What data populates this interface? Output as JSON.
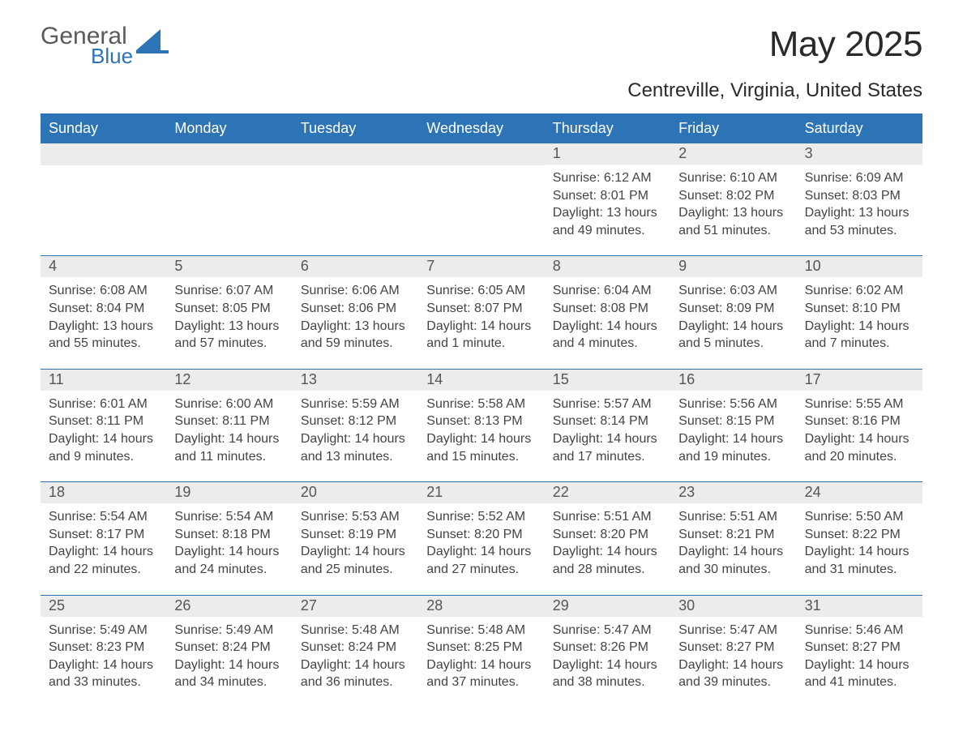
{
  "brand": {
    "general": "General",
    "blue": "Blue",
    "icon_color": "#2d74b7"
  },
  "header": {
    "month_title": "May 2025",
    "location": "Centreville, Virginia, United States"
  },
  "colors": {
    "header_bg": "#2d74b7",
    "header_text": "#ffffff",
    "daynum_bg": "#ececec",
    "daynum_text": "#555555",
    "body_text": "#444444",
    "rule": "#2d74b7",
    "page_bg": "#ffffff"
  },
  "typography": {
    "month_title_pt": 44,
    "location_pt": 24,
    "weekday_pt": 18,
    "daynum_pt": 18,
    "body_pt": 16,
    "font_family": "Arial"
  },
  "calendar": {
    "type": "table",
    "columns": 7,
    "weekdays": [
      "Sunday",
      "Monday",
      "Tuesday",
      "Wednesday",
      "Thursday",
      "Friday",
      "Saturday"
    ],
    "labels": {
      "sunrise": "Sunrise:",
      "sunset": "Sunset:",
      "daylight": "Daylight:"
    },
    "weeks": [
      [
        null,
        null,
        null,
        null,
        {
          "day": "1",
          "sunrise": "6:12 AM",
          "sunset": "8:01 PM",
          "daylight": "13 hours and 49 minutes."
        },
        {
          "day": "2",
          "sunrise": "6:10 AM",
          "sunset": "8:02 PM",
          "daylight": "13 hours and 51 minutes."
        },
        {
          "day": "3",
          "sunrise": "6:09 AM",
          "sunset": "8:03 PM",
          "daylight": "13 hours and 53 minutes."
        }
      ],
      [
        {
          "day": "4",
          "sunrise": "6:08 AM",
          "sunset": "8:04 PM",
          "daylight": "13 hours and 55 minutes."
        },
        {
          "day": "5",
          "sunrise": "6:07 AM",
          "sunset": "8:05 PM",
          "daylight": "13 hours and 57 minutes."
        },
        {
          "day": "6",
          "sunrise": "6:06 AM",
          "sunset": "8:06 PM",
          "daylight": "13 hours and 59 minutes."
        },
        {
          "day": "7",
          "sunrise": "6:05 AM",
          "sunset": "8:07 PM",
          "daylight": "14 hours and 1 minute."
        },
        {
          "day": "8",
          "sunrise": "6:04 AM",
          "sunset": "8:08 PM",
          "daylight": "14 hours and 4 minutes."
        },
        {
          "day": "9",
          "sunrise": "6:03 AM",
          "sunset": "8:09 PM",
          "daylight": "14 hours and 5 minutes."
        },
        {
          "day": "10",
          "sunrise": "6:02 AM",
          "sunset": "8:10 PM",
          "daylight": "14 hours and 7 minutes."
        }
      ],
      [
        {
          "day": "11",
          "sunrise": "6:01 AM",
          "sunset": "8:11 PM",
          "daylight": "14 hours and 9 minutes."
        },
        {
          "day": "12",
          "sunrise": "6:00 AM",
          "sunset": "8:11 PM",
          "daylight": "14 hours and 11 minutes."
        },
        {
          "day": "13",
          "sunrise": "5:59 AM",
          "sunset": "8:12 PM",
          "daylight": "14 hours and 13 minutes."
        },
        {
          "day": "14",
          "sunrise": "5:58 AM",
          "sunset": "8:13 PM",
          "daylight": "14 hours and 15 minutes."
        },
        {
          "day": "15",
          "sunrise": "5:57 AM",
          "sunset": "8:14 PM",
          "daylight": "14 hours and 17 minutes."
        },
        {
          "day": "16",
          "sunrise": "5:56 AM",
          "sunset": "8:15 PM",
          "daylight": "14 hours and 19 minutes."
        },
        {
          "day": "17",
          "sunrise": "5:55 AM",
          "sunset": "8:16 PM",
          "daylight": "14 hours and 20 minutes."
        }
      ],
      [
        {
          "day": "18",
          "sunrise": "5:54 AM",
          "sunset": "8:17 PM",
          "daylight": "14 hours and 22 minutes."
        },
        {
          "day": "19",
          "sunrise": "5:54 AM",
          "sunset": "8:18 PM",
          "daylight": "14 hours and 24 minutes."
        },
        {
          "day": "20",
          "sunrise": "5:53 AM",
          "sunset": "8:19 PM",
          "daylight": "14 hours and 25 minutes."
        },
        {
          "day": "21",
          "sunrise": "5:52 AM",
          "sunset": "8:20 PM",
          "daylight": "14 hours and 27 minutes."
        },
        {
          "day": "22",
          "sunrise": "5:51 AM",
          "sunset": "8:20 PM",
          "daylight": "14 hours and 28 minutes."
        },
        {
          "day": "23",
          "sunrise": "5:51 AM",
          "sunset": "8:21 PM",
          "daylight": "14 hours and 30 minutes."
        },
        {
          "day": "24",
          "sunrise": "5:50 AM",
          "sunset": "8:22 PM",
          "daylight": "14 hours and 31 minutes."
        }
      ],
      [
        {
          "day": "25",
          "sunrise": "5:49 AM",
          "sunset": "8:23 PM",
          "daylight": "14 hours and 33 minutes."
        },
        {
          "day": "26",
          "sunrise": "5:49 AM",
          "sunset": "8:24 PM",
          "daylight": "14 hours and 34 minutes."
        },
        {
          "day": "27",
          "sunrise": "5:48 AM",
          "sunset": "8:24 PM",
          "daylight": "14 hours and 36 minutes."
        },
        {
          "day": "28",
          "sunrise": "5:48 AM",
          "sunset": "8:25 PM",
          "daylight": "14 hours and 37 minutes."
        },
        {
          "day": "29",
          "sunrise": "5:47 AM",
          "sunset": "8:26 PM",
          "daylight": "14 hours and 38 minutes."
        },
        {
          "day": "30",
          "sunrise": "5:47 AM",
          "sunset": "8:27 PM",
          "daylight": "14 hours and 39 minutes."
        },
        {
          "day": "31",
          "sunrise": "5:46 AM",
          "sunset": "8:27 PM",
          "daylight": "14 hours and 41 minutes."
        }
      ]
    ]
  }
}
